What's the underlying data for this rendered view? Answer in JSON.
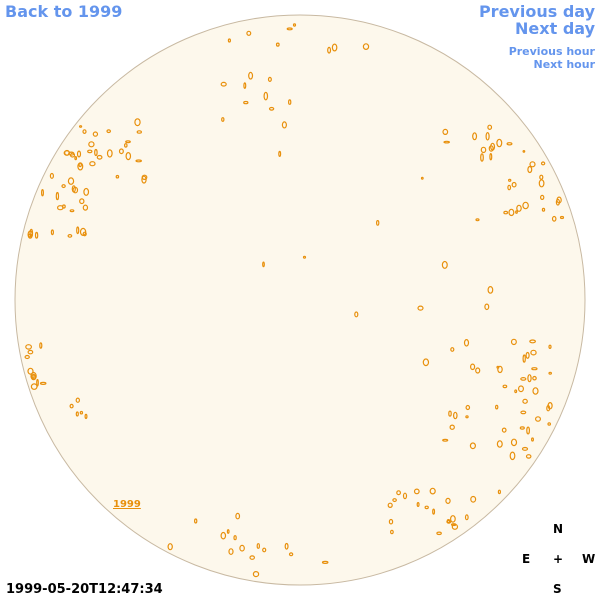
{
  "nav": {
    "back": "Back to 1999",
    "previous_day": "Previous day",
    "next_day": "Next day",
    "previous_hour": "Previous hour",
    "next_hour": "Next hour"
  },
  "image": {
    "year_label": "1999",
    "compass": {
      "north": "N",
      "east": "E",
      "center": "+",
      "west": "W",
      "south": "S"
    }
  },
  "timestamp": "1999-05-20T12:47:34"
}
